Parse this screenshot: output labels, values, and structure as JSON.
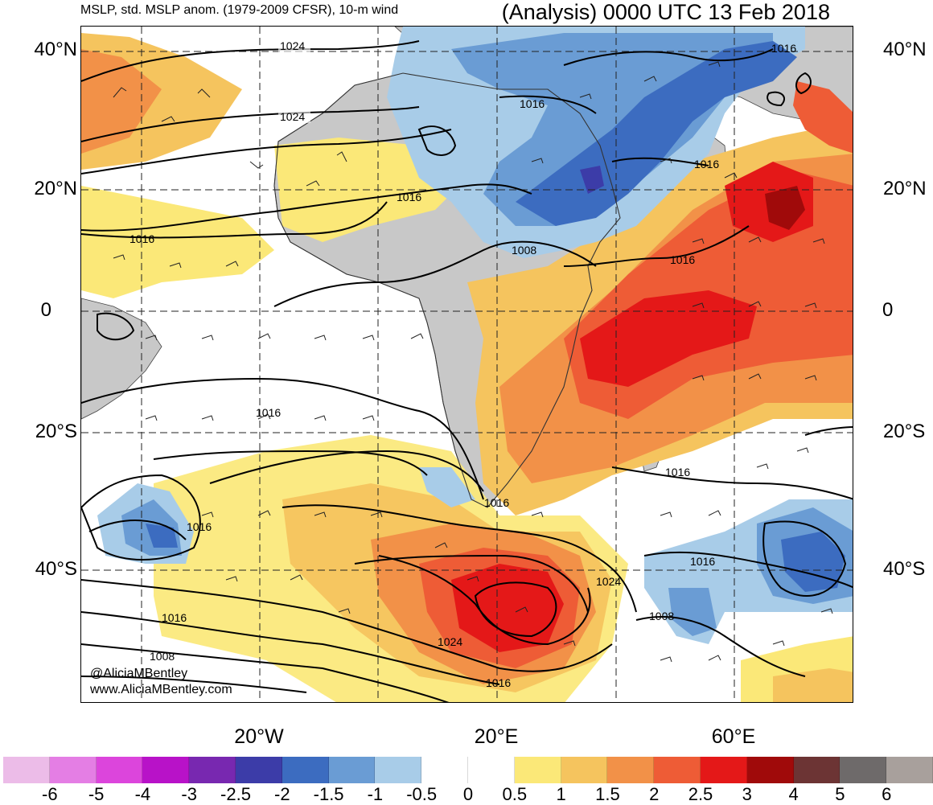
{
  "header": {
    "left_title": "MSLP, std. MSLP anom. (1979-2009 CFSR), 10-m wind",
    "right_title": "(Analysis) 0000 UTC 13 Feb 2018"
  },
  "latitude_labels": [
    "40°N",
    "20°N",
    "0",
    "20°S",
    "40°S"
  ],
  "longitude_labels": [
    "20°W",
    "20°E",
    "60°E"
  ],
  "contour_labels": {
    "c1": "1024",
    "c2": "1024",
    "c3": "1016",
    "c4": "1016",
    "c5": "1016",
    "c6": "1016",
    "c7": "1016",
    "c8": "1008",
    "c9": "1016",
    "c10": "1016",
    "c11": "1016",
    "c12": "1016",
    "c13": "1016",
    "c14": "1016",
    "c15": "1024",
    "c16": "1024",
    "c17": "1008",
    "c18": "1016",
    "c19": "1008",
    "c20": "1016"
  },
  "credit": {
    "handle": "@AliciaMBentley",
    "site": "www.AliciaMBentley.com"
  },
  "colorbar": {
    "colors": [
      "#ecbce8",
      "#e47ee4",
      "#dc45dc",
      "#b812c8",
      "#7828b0",
      "#3c3ca8",
      "#3c6cc0",
      "#6a9cd4",
      "#a8cce8",
      "#ffffff",
      "#ffffff",
      "#fbe878",
      "#f5c45e",
      "#f29148",
      "#ee5c36",
      "#e41818",
      "#a00a0a",
      "#6c3434",
      "#6e6a6a",
      "#a8a09c"
    ],
    "ticks": [
      "-6",
      "-5",
      "-4",
      "-3",
      "-2.5",
      "-2",
      "-1.5",
      "-1",
      "-0.5",
      "0",
      "0.5",
      "1",
      "1.5",
      "2",
      "2.5",
      "3",
      "4",
      "5",
      "6"
    ]
  }
}
